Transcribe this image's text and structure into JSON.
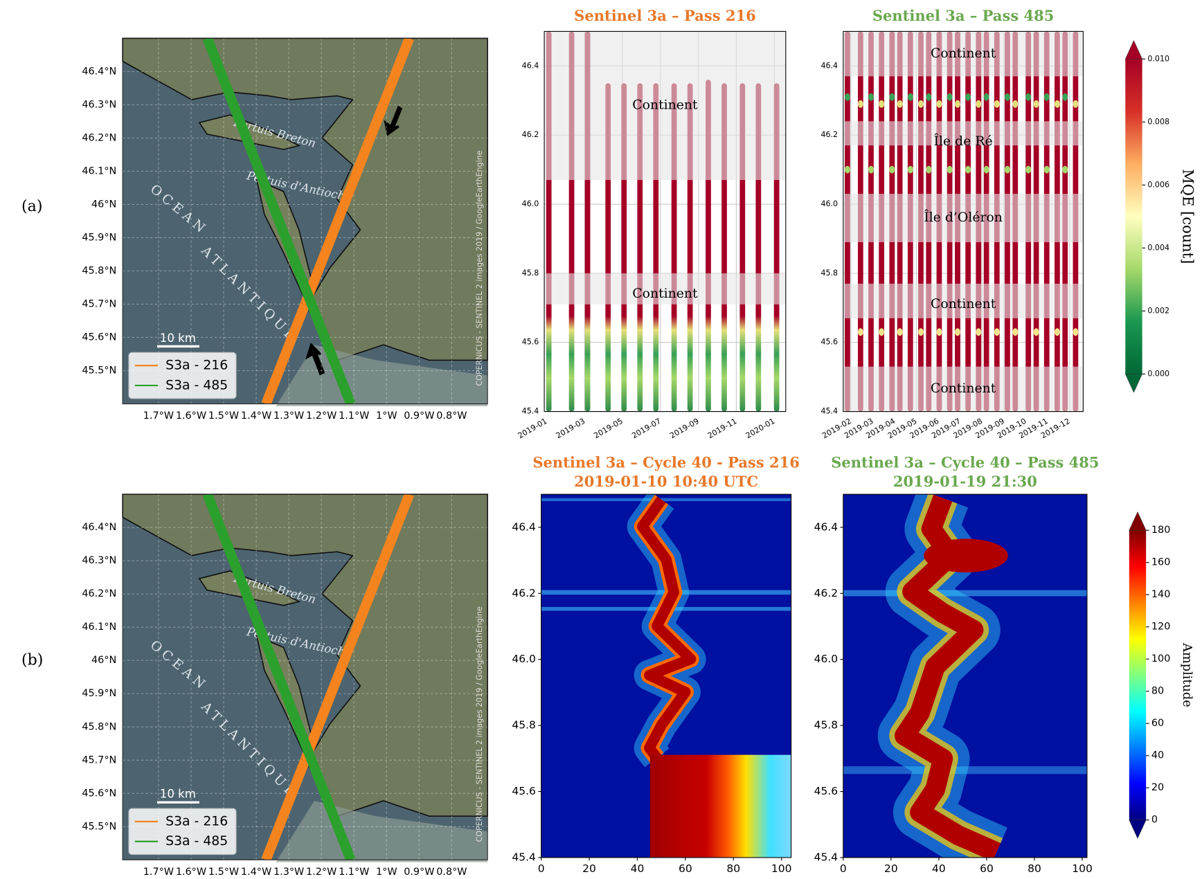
{
  "row_labels": [
    "(a)",
    "(b)"
  ],
  "chart_data": [
    {
      "type": "map",
      "xlim": [
        -1.81,
        -0.69
      ],
      "ylim": [
        45.4,
        46.5
      ],
      "xticks": [
        {
          "value": -1.7,
          "label": "1.7°W"
        },
        {
          "value": -1.6,
          "label": "1.6°W"
        },
        {
          "value": -1.5,
          "label": "1.5°W"
        },
        {
          "value": -1.4,
          "label": "1.4°W"
        },
        {
          "value": -1.3,
          "label": "1.3°W"
        },
        {
          "value": -1.2,
          "label": "1.2°W"
        },
        {
          "value": -1.1,
          "label": "1.1°W"
        },
        {
          "value": -1,
          "label": "1°W"
        },
        {
          "value": -0.9,
          "label": "0.9°W"
        },
        {
          "value": -0.8,
          "label": "0.8°W"
        }
      ],
      "yticks": [
        {
          "value": 45.5,
          "label": "45.5°N"
        },
        {
          "value": 45.6,
          "label": "45.6°N"
        },
        {
          "value": 45.7,
          "label": "45.7°N"
        },
        {
          "value": 45.8,
          "label": "45.8°N"
        },
        {
          "value": 45.9,
          "label": "45.9°N"
        },
        {
          "value": 46,
          "label": "46°N"
        },
        {
          "value": 46.1,
          "label": "46.1°N"
        },
        {
          "value": 46.2,
          "label": "46.2°N"
        },
        {
          "value": 46.3,
          "label": "46.3°N"
        },
        {
          "value": 46.4,
          "label": "46.4°N"
        }
      ],
      "series": [
        {
          "name": "S3a - 216",
          "color": "#f5841f",
          "x": [
            -1.37,
            -0.93
          ],
          "y": [
            45.4,
            46.5
          ]
        },
        {
          "name": "S3a - 485",
          "color": "#2ca02c",
          "x": [
            -1.55,
            -1.11
          ],
          "y": [
            46.5,
            45.4
          ]
        }
      ],
      "annotations": [
        "Pertuis Breton",
        "Pertuis d'Antioche",
        "OCEAN",
        "ATLANTIQUE"
      ],
      "scale_label": "10 km",
      "credit": "COPERNICUS - SENTINEL 2 images 2019 / GoogleEarthEngine",
      "legend": "lower left",
      "grid": true
    },
    {
      "type": "strip",
      "title": "Sentinel 3a – Pass 216",
      "title_color": "#e8782a",
      "xlim": [
        2018.99,
        2020.05
      ],
      "ylim": [
        45.4,
        46.5
      ],
      "xticks": [
        {
          "value": 2019.0,
          "label": "2019-01"
        },
        {
          "value": 2019.167,
          "label": "2019-03"
        },
        {
          "value": 2019.333,
          "label": "2019-05"
        },
        {
          "value": 2019.5,
          "label": "2019-07"
        },
        {
          "value": 2019.667,
          "label": "2019-09"
        },
        {
          "value": 2019.833,
          "label": "2019-11"
        },
        {
          "value": 2020.0,
          "label": "2020-01"
        }
      ],
      "yticks": [
        45.4,
        45.6,
        45.8,
        {
          "value": 46,
          "label": "46.0"
        },
        46.2,
        46.4
      ],
      "x": [
        2019.01,
        2019.11,
        2019.18,
        2019.27,
        2019.34,
        2019.41,
        2019.48,
        2019.56,
        2019.63,
        2019.71,
        2019.78,
        2019.86,
        2019.93,
        2020.01
      ],
      "values": [
        46.5,
        46.5,
        46.5,
        46.35,
        46.35,
        46.35,
        46.35,
        46.35,
        46.35,
        46.36,
        46.35,
        46.35,
        46.35,
        46.35
      ],
      "bands": [
        {
          "label": "Continent",
          "range": [
            46.07,
            46.5
          ]
        },
        {
          "label": "Continent",
          "range": [
            45.71,
            45.8
          ]
        }
      ],
      "grid": true
    },
    {
      "type": "strip",
      "title": "Sentinel 3a – Pass 485",
      "title_color": "#6aa84f",
      "xlim": [
        2019.054,
        2019.969
      ],
      "ylim": [
        45.4,
        46.5
      ],
      "xticks": [
        {
          "value": 2019.083,
          "label": "2019-02"
        },
        {
          "value": 2019.167,
          "label": "2019-03"
        },
        {
          "value": 2019.25,
          "label": "2019-04"
        },
        {
          "value": 2019.333,
          "label": "2019-05"
        },
        {
          "value": 2019.417,
          "label": "2019-06"
        },
        {
          "value": 2019.5,
          "label": "2019-07"
        },
        {
          "value": 2019.583,
          "label": "2019-08"
        },
        {
          "value": 2019.667,
          "label": "2019-09"
        },
        {
          "value": 2019.75,
          "label": "2019-10"
        },
        {
          "value": 2019.833,
          "label": "2019-11"
        },
        {
          "value": 2019.917,
          "label": "2019-12"
        }
      ],
      "yticks": [
        45.4,
        45.6,
        45.8,
        {
          "value": 46,
          "label": "46.0"
        },
        46.2,
        46.4
      ],
      "x": [
        2019.07,
        2019.12,
        2019.16,
        2019.2,
        2019.24,
        2019.27,
        2019.31,
        2019.35,
        2019.38,
        2019.42,
        2019.46,
        2019.49,
        2019.53,
        2019.57,
        2019.6,
        2019.64,
        2019.68,
        2019.71,
        2019.76,
        2019.79,
        2019.83,
        2019.87,
        2019.9,
        2019.94
      ],
      "values": [
        46.5,
        46.5,
        46.5,
        46.5,
        46.5,
        46.5,
        46.5,
        46.5,
        46.5,
        46.5,
        46.5,
        46.5,
        46.5,
        46.5,
        46.5,
        46.5,
        46.5,
        46.5,
        46.5,
        46.5,
        46.5,
        46.5,
        46.5,
        46.5
      ],
      "bands": [
        {
          "label": "Continent",
          "range": [
            46.37,
            46.5
          ]
        },
        {
          "label": "Île de Ré",
          "range": [
            46.17,
            46.24
          ]
        },
        {
          "label": "Île d’Oléron",
          "range": [
            45.89,
            46.03
          ]
        },
        {
          "label": "Continent",
          "range": [
            45.67,
            45.77
          ]
        },
        {
          "label": "Continent",
          "range": [
            45.4,
            45.53
          ]
        }
      ],
      "grid": true
    },
    {
      "type": "map",
      "xlim": [
        -1.81,
        -0.69
      ],
      "ylim": [
        45.4,
        46.5
      ],
      "xticks": [
        {
          "value": -1.7,
          "label": "1.7°W"
        },
        {
          "value": -1.6,
          "label": "1.6°W"
        },
        {
          "value": -1.5,
          "label": "1.5°W"
        },
        {
          "value": -1.4,
          "label": "1.4°W"
        },
        {
          "value": -1.3,
          "label": "1.3°W"
        },
        {
          "value": -1.2,
          "label": "1.2°W"
        },
        {
          "value": -1.1,
          "label": "1.1°W"
        },
        {
          "value": -1,
          "label": "1°W"
        },
        {
          "value": -0.9,
          "label": "0.9°W"
        },
        {
          "value": -0.8,
          "label": "0.8°W"
        }
      ],
      "yticks": [
        {
          "value": 45.5,
          "label": "45.5°N"
        },
        {
          "value": 45.6,
          "label": "45.6°N"
        },
        {
          "value": 45.7,
          "label": "45.7°N"
        },
        {
          "value": 45.8,
          "label": "45.8°N"
        },
        {
          "value": 45.9,
          "label": "45.9°N"
        },
        {
          "value": 46,
          "label": "46°N"
        },
        {
          "value": 46.1,
          "label": "46.1°N"
        },
        {
          "value": 46.2,
          "label": "46.2°N"
        },
        {
          "value": 46.3,
          "label": "46.3°N"
        },
        {
          "value": 46.4,
          "label": "46.4°N"
        }
      ],
      "series": [
        {
          "name": "S3a - 216",
          "color": "#f5841f",
          "x": [
            -1.37,
            -0.93
          ],
          "y": [
            45.4,
            46.5
          ]
        },
        {
          "name": "S3a - 485",
          "color": "#2ca02c",
          "x": [
            -1.55,
            -1.11
          ],
          "y": [
            46.5,
            45.4
          ]
        }
      ],
      "annotations": [
        "Pertuis Breton",
        "Pertuis d'Antioche",
        "OCEAN",
        "ATLANTIQUE"
      ],
      "scale_label": "10 km",
      "credit": "COPERNICUS - SENTINEL 2 images 2019 / GoogleEarthEngine",
      "legend": "lower left",
      "grid": true
    },
    {
      "type": "heatmap",
      "title": [
        "Sentinel 3a – Cycle 40 - Pass 216",
        "2019-01-10 10:40 UTC"
      ],
      "title_color": "#e8782a",
      "xlim": [
        0,
        104
      ],
      "ylim": [
        45.4,
        46.5
      ],
      "xticks": [
        0,
        20,
        40,
        60,
        80,
        100
      ],
      "yticks": [
        45.4,
        45.6,
        45.8,
        {
          "value": 46,
          "label": "46.0"
        },
        46.2,
        46.4
      ]
    },
    {
      "type": "heatmap",
      "title": [
        "Sentinel 3a – Cycle 40 – Pass 485",
        "2019-01-19 21:30"
      ],
      "title_color": "#6aa84f",
      "xlim": [
        0,
        102
      ],
      "ylim": [
        45.4,
        46.5
      ],
      "xticks": [
        0,
        20,
        40,
        60,
        80,
        100
      ],
      "yticks": [
        45.4,
        45.6,
        45.8,
        {
          "value": 46,
          "label": "46.0"
        },
        46.2,
        46.4
      ]
    }
  ],
  "colorbars": [
    {
      "label": "MQE [count]",
      "lim": [
        0,
        0.01
      ],
      "colormap": "RdYlGn_r",
      "ticks": [
        {
          "value": 0,
          "label": "0.000"
        },
        {
          "value": 0.002,
          "label": "0.002"
        },
        {
          "value": 0.004,
          "label": "0.004"
        },
        {
          "value": 0.006,
          "label": "0.006"
        },
        {
          "value": 0.008,
          "label": "0.008"
        },
        {
          "value": 0.01,
          "label": "0.010"
        }
      ]
    },
    {
      "label": "Amplitude",
      "lim": [
        0,
        180
      ],
      "colormap": "jet",
      "ticks": [
        0,
        20,
        40,
        60,
        80,
        100,
        120,
        140,
        160,
        180
      ]
    }
  ]
}
